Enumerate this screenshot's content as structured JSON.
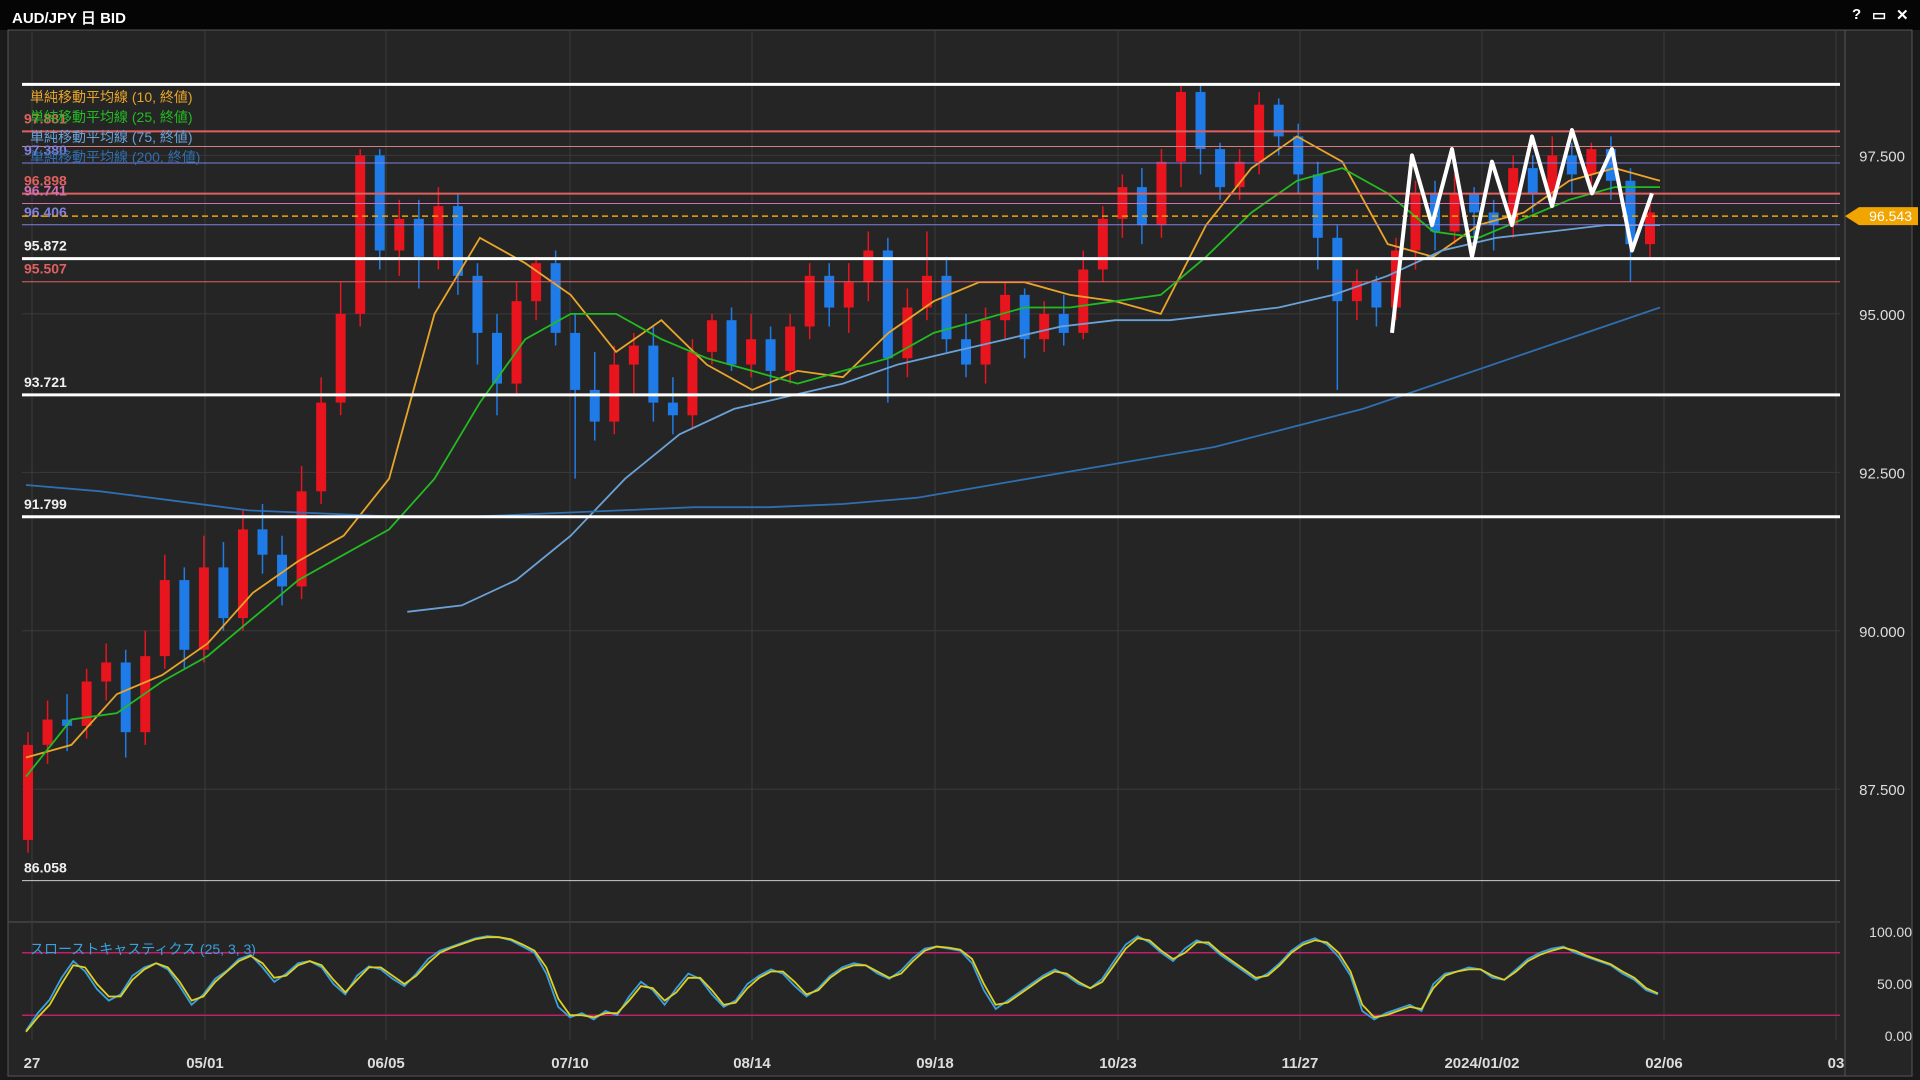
{
  "window": {
    "title": "AUD/JPY 日 BID",
    "help": "?",
    "maximize": "▭",
    "close": "✕"
  },
  "colors": {
    "background": "#252525",
    "grid": "#3a3a3a",
    "up_candle": "#e8141e",
    "down_candle": "#1e7be8",
    "sma10": "#e8a52a",
    "sma25": "#22bb22",
    "sma75": "#6aa2d8",
    "sma200": "#2f6fb0",
    "current_price": "#f0a500",
    "stoch_k": "#3aa0e0",
    "stoch_d": "#e0d020",
    "stoch_levels": "#c0206a"
  },
  "chart_data": [
    {
      "type": "candlestick",
      "title": "AUD/JPY 日 BID",
      "ylim": [
        85.5,
        99.1
      ],
      "y_ticks": [
        "97.500",
        "95.000",
        "92.500",
        "90.000",
        "87.500"
      ],
      "x_ticks": [
        "27",
        "05/01",
        "06/05",
        "07/10",
        "08/14",
        "09/18",
        "10/23",
        "11/27",
        "2024/01/02",
        "02/06",
        "03"
      ],
      "current_price": "96.543",
      "legend": [
        {
          "label": "単純移動平均線 (10, 終値)",
          "color": "#e8a52a"
        },
        {
          "label": "単純移動平均線 (25, 終値)",
          "color": "#22bb22"
        },
        {
          "label": "単純移動平均線 (75, 終値)",
          "color": "#6aa2d8"
        },
        {
          "label": "単純移動平均線 (200, 終値)",
          "color": "#2f6fb0"
        }
      ],
      "levels": [
        {
          "value": 98.62,
          "label": "",
          "color": "#ffffff",
          "width": 3
        },
        {
          "value": 97.88,
          "label": "97.881",
          "color": "#e06060",
          "width": 2
        },
        {
          "value": 97.64,
          "label": "",
          "color": "#d08080",
          "width": 1
        },
        {
          "value": 97.38,
          "label": "97.380",
          "color": "#8080e0",
          "width": 1
        },
        {
          "value": 96.898,
          "label": "96.898",
          "color": "#e06060",
          "width": 2
        },
        {
          "value": 96.741,
          "label": "96.741",
          "color": "#d070b0",
          "width": 1
        },
        {
          "value": 96.406,
          "label": "96.406",
          "color": "#8080e0",
          "width": 1
        },
        {
          "value": 95.872,
          "label": "95.872",
          "color": "#ffffff",
          "width": 3
        },
        {
          "value": 95.507,
          "label": "95.507",
          "color": "#e06060",
          "width": 1
        },
        {
          "value": 93.721,
          "label": "93.721",
          "color": "#ffffff",
          "width": 3
        },
        {
          "value": 91.799,
          "label": "91.799",
          "color": "#ffffff",
          "width": 3
        },
        {
          "value": 86.058,
          "label": "86.058",
          "color": "#cccccc",
          "width": 1
        }
      ],
      "series": [
        {
          "name": "単純移動平均線 (10, 終値)",
          "values": [
            88,
            88.2,
            89,
            89.3,
            89.8,
            90.6,
            91.1,
            91.5,
            92.4,
            95,
            96.2,
            95.8,
            95.3,
            94.4,
            94.9,
            94.2,
            93.8,
            94.1,
            94,
            94.7,
            95.2,
            95.5,
            95.5,
            95.3,
            95.2,
            95,
            96.4,
            97.3,
            97.8,
            97.4,
            96.1,
            95.9,
            96.4,
            96.6,
            97.1,
            97.3,
            97.1
          ]
        },
        {
          "name": "単純移動平均線 (25, 終値)",
          "values": [
            87.7,
            88.6,
            88.7,
            89.2,
            89.6,
            90.2,
            90.8,
            91.2,
            91.6,
            92.4,
            93.6,
            94.6,
            95,
            95,
            94.6,
            94.3,
            94.1,
            93.9,
            94.1,
            94.3,
            94.7,
            94.9,
            95.1,
            95.1,
            95.2,
            95.3,
            95.9,
            96.6,
            97.1,
            97.3,
            96.9,
            96.3,
            96.2,
            96.5,
            96.8,
            97,
            97
          ]
        },
        {
          "name": "単純移動平均線 (75, 終値)",
          "values": [
            null,
            null,
            null,
            null,
            null,
            null,
            null,
            90.3,
            90.4,
            90.8,
            91.5,
            92.4,
            93.1,
            93.5,
            93.7,
            93.9,
            94.2,
            94.4,
            94.6,
            94.8,
            94.9,
            94.9,
            95,
            95.1,
            95.3,
            95.6,
            96,
            96.2,
            96.3,
            96.4,
            96.4
          ]
        },
        {
          "name": "単純移動平均線 (200, 終値)",
          "values": [
            92.3,
            92.2,
            92.05,
            91.9,
            91.85,
            91.8,
            91.8,
            91.85,
            91.9,
            91.95,
            91.95,
            92,
            92.1,
            92.3,
            92.5,
            92.7,
            92.9,
            93.2,
            93.5,
            93.9,
            94.3,
            94.7,
            95.1
          ]
        }
      ],
      "candles": [
        [
          86.7,
          88.2,
          86.5,
          88.4
        ],
        [
          88.2,
          88.6,
          87.9,
          88.9
        ],
        [
          88.6,
          88.5,
          88.1,
          89
        ],
        [
          88.5,
          89.2,
          88.3,
          89.4
        ],
        [
          89.2,
          89.5,
          88.9,
          89.8
        ],
        [
          89.5,
          88.4,
          88,
          89.7
        ],
        [
          88.4,
          89.6,
          88.2,
          90
        ],
        [
          89.6,
          90.8,
          89.4,
          91.2
        ],
        [
          90.8,
          89.7,
          89.4,
          91
        ],
        [
          89.7,
          91,
          89.5,
          91.5
        ],
        [
          91,
          90.2,
          90,
          91.4
        ],
        [
          90.2,
          91.6,
          90,
          91.9
        ],
        [
          91.6,
          91.2,
          90.9,
          92
        ],
        [
          91.2,
          90.7,
          90.4,
          91.5
        ],
        [
          90.7,
          92.2,
          90.5,
          92.6
        ],
        [
          92.2,
          93.6,
          92,
          94
        ],
        [
          93.6,
          95,
          93.4,
          95.5
        ],
        [
          95,
          97.5,
          94.8,
          97.6
        ],
        [
          97.5,
          96,
          95.7,
          97.6
        ],
        [
          96,
          96.5,
          95.6,
          96.8
        ],
        [
          96.5,
          95.9,
          95.4,
          96.8
        ],
        [
          95.9,
          96.7,
          95.7,
          97
        ],
        [
          96.7,
          95.6,
          95.3,
          96.9
        ],
        [
          95.6,
          94.7,
          94.2,
          95.8
        ],
        [
          94.7,
          93.9,
          93.4,
          95
        ],
        [
          93.9,
          95.2,
          93.7,
          95.5
        ],
        [
          95.2,
          95.8,
          94.9,
          95.9
        ],
        [
          95.8,
          94.7,
          94.5,
          96
        ],
        [
          94.7,
          93.8,
          92.4,
          95
        ],
        [
          93.8,
          93.3,
          93,
          94.4
        ],
        [
          93.3,
          94.2,
          93.1,
          94.5
        ],
        [
          94.2,
          94.5,
          93.7,
          94.7
        ],
        [
          94.5,
          93.6,
          93.3,
          94.8
        ],
        [
          93.6,
          93.4,
          93.1,
          94
        ],
        [
          93.4,
          94.4,
          93.2,
          94.6
        ],
        [
          94.4,
          94.9,
          94.2,
          95
        ],
        [
          94.9,
          94.2,
          94.1,
          95.1
        ],
        [
          94.2,
          94.6,
          94,
          95
        ],
        [
          94.6,
          94.1,
          93.7,
          94.8
        ],
        [
          94.1,
          94.8,
          93.9,
          95
        ],
        [
          94.8,
          95.6,
          94.6,
          95.8
        ],
        [
          95.6,
          95.1,
          94.8,
          95.8
        ],
        [
          95.1,
          95.5,
          94.7,
          95.8
        ],
        [
          95.5,
          96,
          95.2,
          96.3
        ],
        [
          96,
          94.3,
          93.6,
          96.2
        ],
        [
          94.3,
          95.1,
          94,
          95.4
        ],
        [
          95.1,
          95.6,
          94.9,
          96.3
        ],
        [
          95.6,
          94.6,
          94.4,
          95.9
        ],
        [
          94.6,
          94.2,
          94,
          95
        ],
        [
          94.2,
          94.9,
          93.9,
          95.1
        ],
        [
          94.9,
          95.3,
          94.6,
          95.5
        ],
        [
          95.3,
          94.6,
          94.3,
          95.4
        ],
        [
          94.6,
          95,
          94.4,
          95.2
        ],
        [
          95,
          94.7,
          94.5,
          95.3
        ],
        [
          94.7,
          95.7,
          94.6,
          96
        ],
        [
          95.7,
          96.5,
          95.5,
          96.7
        ],
        [
          96.5,
          97,
          96.2,
          97.2
        ],
        [
          97,
          96.4,
          96.1,
          97.3
        ],
        [
          96.4,
          97.4,
          96.2,
          97.6
        ],
        [
          97.4,
          98.5,
          97,
          98.6
        ],
        [
          98.5,
          97.6,
          97.2,
          98.6
        ],
        [
          97.6,
          97,
          96.8,
          97.7
        ],
        [
          97,
          97.4,
          96.8,
          97.6
        ],
        [
          97.4,
          98.3,
          97.2,
          98.5
        ],
        [
          98.3,
          97.8,
          97.5,
          98.4
        ],
        [
          97.8,
          97.2,
          96.9,
          98
        ],
        [
          97.2,
          96.2,
          95.7,
          97.4
        ],
        [
          96.2,
          95.2,
          93.8,
          96.4
        ],
        [
          95.2,
          95.5,
          94.9,
          95.7
        ],
        [
          95.5,
          95.1,
          94.8,
          95.6
        ],
        [
          95.1,
          96,
          94.9,
          96.2
        ],
        [
          96,
          96.9,
          95.7,
          97.1
        ],
        [
          96.9,
          96.3,
          96,
          97.1
        ],
        [
          96.3,
          96.9,
          96.1,
          97.2
        ],
        [
          96.9,
          96.6,
          96.2,
          97
        ],
        [
          96.6,
          96.4,
          96,
          96.8
        ],
        [
          96.4,
          97.3,
          96.2,
          97.5
        ],
        [
          97.3,
          96.9,
          96.6,
          97.5
        ],
        [
          96.9,
          97.5,
          96.7,
          97.8
        ],
        [
          97.5,
          97.2,
          96.9,
          97.7
        ],
        [
          97.2,
          97.6,
          96.9,
          97.7
        ],
        [
          97.6,
          97.1,
          96.8,
          97.8
        ],
        [
          97.1,
          96.1,
          95.5,
          97.3
        ],
        [
          96.1,
          96.6,
          95.9,
          96.9
        ]
      ]
    },
    {
      "type": "line",
      "title": "スローストキャスティクス (25, 3, 3)",
      "ylim": [
        0,
        100
      ],
      "y_ticks": [
        "100.00",
        "50.00",
        "0.00"
      ],
      "levels": [
        80,
        20
      ],
      "series": [
        {
          "name": "%K",
          "values": [
            5,
            22,
            35,
            56,
            72,
            62,
            45,
            34,
            40,
            58,
            66,
            70,
            64,
            48,
            30,
            40,
            55,
            63,
            74,
            78,
            66,
            52,
            60,
            70,
            72,
            66,
            50,
            40,
            58,
            67,
            64,
            55,
            48,
            60,
            74,
            82,
            86,
            90,
            94,
            96,
            95,
            92,
            86,
            80,
            60,
            28,
            18,
            22,
            16,
            24,
            20,
            38,
            52,
            44,
            30,
            46,
            60,
            55,
            40,
            28,
            34,
            50,
            58,
            64,
            60,
            48,
            38,
            46,
            58,
            66,
            70,
            68,
            60,
            55,
            63,
            75,
            84,
            86,
            84,
            82,
            70,
            44,
            26,
            34,
            42,
            50,
            58,
            64,
            58,
            50,
            46,
            55,
            72,
            88,
            96,
            90,
            80,
            72,
            84,
            92,
            88,
            78,
            70,
            62,
            54,
            60,
            70,
            82,
            90,
            94,
            88,
            76,
            58,
            24,
            16,
            22,
            26,
            30,
            24,
            50,
            60,
            62,
            66,
            64,
            56,
            54,
            64,
            74,
            80,
            84,
            86,
            80,
            76,
            72,
            68,
            60,
            54,
            44,
            40
          ]
        },
        {
          "name": "%D",
          "values": [
            4,
            18,
            30,
            50,
            68,
            66,
            50,
            38,
            38,
            54,
            64,
            70,
            66,
            52,
            34,
            38,
            52,
            62,
            72,
            77,
            70,
            56,
            58,
            68,
            72,
            68,
            54,
            42,
            54,
            66,
            66,
            58,
            50,
            58,
            70,
            80,
            85,
            89,
            93,
            95,
            95,
            93,
            88,
            82,
            66,
            36,
            20,
            20,
            18,
            22,
            22,
            34,
            48,
            46,
            34,
            42,
            56,
            56,
            44,
            30,
            32,
            46,
            56,
            62,
            62,
            52,
            40,
            44,
            56,
            64,
            68,
            68,
            62,
            56,
            60,
            72,
            82,
            86,
            85,
            83,
            74,
            50,
            30,
            32,
            40,
            48,
            56,
            62,
            60,
            52,
            46,
            52,
            68,
            84,
            94,
            92,
            82,
            74,
            80,
            90,
            90,
            80,
            72,
            64,
            56,
            58,
            68,
            80,
            88,
            92,
            90,
            80,
            62,
            30,
            18,
            20,
            24,
            28,
            26,
            46,
            58,
            62,
            64,
            64,
            58,
            54,
            62,
            72,
            78,
            82,
            85,
            82,
            77,
            73,
            69,
            62,
            56,
            46,
            41
          ]
        }
      ]
    }
  ],
  "annotation": {
    "drawn_zigzag_price_path": [
      94.7,
      97.5,
      96.4,
      97.6,
      95.9,
      97.4,
      96.4,
      97.8,
      96.7,
      97.9,
      96.9,
      97.6,
      96,
      96.9
    ]
  }
}
